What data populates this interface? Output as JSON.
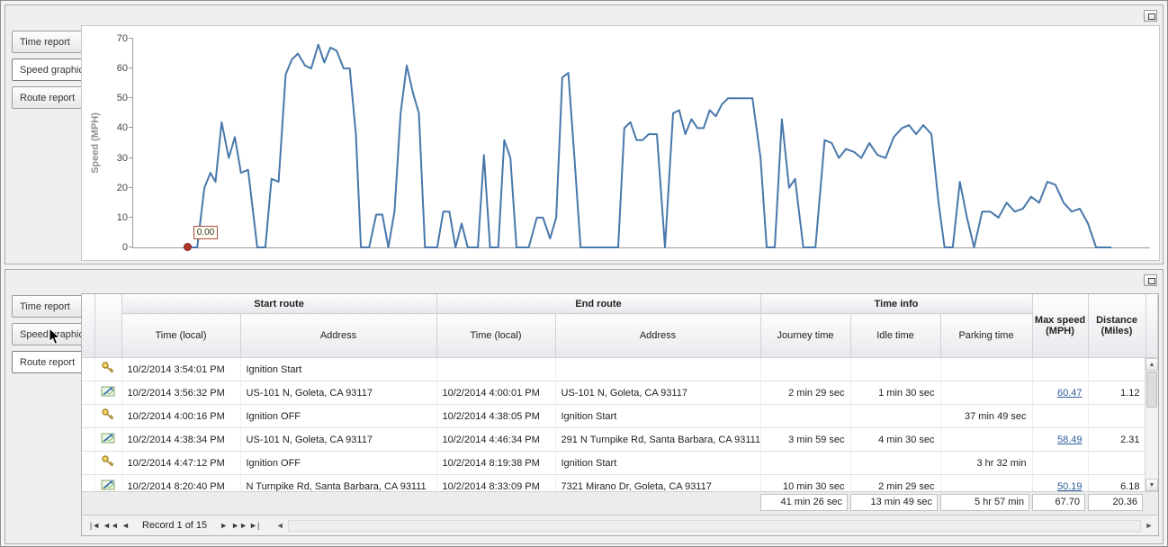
{
  "panels": {
    "top": {
      "tabs": [
        "Time report",
        "Speed graphic",
        "Route report"
      ],
      "selected_tab": "Speed graphic"
    },
    "bottom": {
      "tabs": [
        "Time report",
        "Speed graphic",
        "Route report"
      ],
      "selected_tab": "Route report"
    }
  },
  "chart_data": {
    "type": "line",
    "title": "",
    "xlabel": "",
    "ylabel": "Speed (MPH)",
    "ylim": [
      0,
      70
    ],
    "yticks": [
      0,
      10,
      20,
      30,
      40,
      50,
      60,
      70
    ],
    "grid": false,
    "legend": false,
    "line_color": "#4878ab",
    "marker": {
      "x_pct": 5.2,
      "value": 0,
      "label": "0.00",
      "color": "#b03a2e"
    },
    "points": [
      [
        5.2,
        0
      ],
      [
        6.3,
        0
      ],
      [
        7.0,
        20
      ],
      [
        7.6,
        25
      ],
      [
        8.1,
        22
      ],
      [
        8.7,
        42
      ],
      [
        9.4,
        30
      ],
      [
        10.0,
        37
      ],
      [
        10.6,
        25
      ],
      [
        11.3,
        26
      ],
      [
        12.2,
        0
      ],
      [
        13.0,
        0
      ],
      [
        13.6,
        23
      ],
      [
        14.3,
        22
      ],
      [
        15.0,
        58
      ],
      [
        15.6,
        63
      ],
      [
        16.2,
        65
      ],
      [
        16.9,
        61
      ],
      [
        17.5,
        60
      ],
      [
        18.2,
        68
      ],
      [
        18.8,
        62
      ],
      [
        19.4,
        67
      ],
      [
        20.0,
        66
      ],
      [
        20.7,
        60
      ],
      [
        21.3,
        60
      ],
      [
        21.9,
        38
      ],
      [
        22.4,
        0
      ],
      [
        23.2,
        0
      ],
      [
        23.9,
        11
      ],
      [
        24.5,
        11
      ],
      [
        25.1,
        0
      ],
      [
        25.7,
        12
      ],
      [
        26.3,
        45
      ],
      [
        26.9,
        61
      ],
      [
        27.5,
        52
      ],
      [
        28.1,
        45
      ],
      [
        28.7,
        0
      ],
      [
        29.9,
        0
      ],
      [
        30.5,
        12
      ],
      [
        31.1,
        12
      ],
      [
        31.7,
        0
      ],
      [
        32.3,
        8
      ],
      [
        32.9,
        0
      ],
      [
        33.9,
        0
      ],
      [
        34.5,
        31
      ],
      [
        35.1,
        0
      ],
      [
        35.9,
        0
      ],
      [
        36.5,
        36
      ],
      [
        37.1,
        30
      ],
      [
        37.7,
        0
      ],
      [
        38.9,
        0
      ],
      [
        39.7,
        10
      ],
      [
        40.3,
        10
      ],
      [
        41.0,
        3
      ],
      [
        41.6,
        10
      ],
      [
        42.2,
        57
      ],
      [
        42.8,
        58.5
      ],
      [
        43.4,
        30
      ],
      [
        44.0,
        0
      ],
      [
        45.5,
        0
      ],
      [
        47.7,
        0
      ],
      [
        48.3,
        40
      ],
      [
        48.9,
        42
      ],
      [
        49.5,
        36
      ],
      [
        50.1,
        36
      ],
      [
        50.7,
        38
      ],
      [
        51.5,
        38
      ],
      [
        52.3,
        0
      ],
      [
        53.1,
        45
      ],
      [
        53.7,
        46
      ],
      [
        54.3,
        38
      ],
      [
        54.9,
        43
      ],
      [
        55.5,
        40
      ],
      [
        56.1,
        40
      ],
      [
        56.7,
        46
      ],
      [
        57.3,
        44
      ],
      [
        57.9,
        48
      ],
      [
        58.5,
        50
      ],
      [
        59.3,
        50
      ],
      [
        60.1,
        50
      ],
      [
        60.9,
        50
      ],
      [
        61.7,
        30
      ],
      [
        62.3,
        0
      ],
      [
        63.1,
        0
      ],
      [
        63.8,
        43
      ],
      [
        64.5,
        20
      ],
      [
        65.1,
        23
      ],
      [
        65.9,
        0
      ],
      [
        67.1,
        0
      ],
      [
        68.0,
        36
      ],
      [
        68.7,
        35
      ],
      [
        69.4,
        30
      ],
      [
        70.1,
        33
      ],
      [
        70.9,
        32
      ],
      [
        71.6,
        30
      ],
      [
        72.4,
        35
      ],
      [
        73.2,
        31
      ],
      [
        74.0,
        30
      ],
      [
        74.8,
        37
      ],
      [
        75.6,
        40
      ],
      [
        76.3,
        41
      ],
      [
        77.0,
        38
      ],
      [
        77.7,
        41
      ],
      [
        78.5,
        38
      ],
      [
        79.2,
        15
      ],
      [
        79.8,
        0
      ],
      [
        80.6,
        0
      ],
      [
        81.3,
        22
      ],
      [
        82.0,
        10
      ],
      [
        82.7,
        0
      ],
      [
        83.5,
        12
      ],
      [
        84.3,
        12
      ],
      [
        85.1,
        10
      ],
      [
        85.9,
        15
      ],
      [
        86.7,
        12
      ],
      [
        87.5,
        13
      ],
      [
        88.3,
        17
      ],
      [
        89.1,
        15
      ],
      [
        89.9,
        22
      ],
      [
        90.7,
        21
      ],
      [
        91.5,
        15
      ],
      [
        92.3,
        12
      ],
      [
        93.1,
        13
      ],
      [
        93.9,
        8
      ],
      [
        94.7,
        0
      ],
      [
        96.2,
        0
      ]
    ]
  },
  "table": {
    "groups": [
      "Start route",
      "End route",
      "Time info"
    ],
    "columns": [
      "Time (local)",
      "Address",
      "Time (local)",
      "Address",
      "Journey time",
      "Idle time",
      "Parking time",
      "Max speed (MPH)",
      "Distance (Miles)"
    ],
    "rows": [
      {
        "icon": "key",
        "cells": [
          "10/2/2014 3:54:01 PM",
          "Ignition Start",
          "",
          "",
          "",
          "",
          "",
          "",
          ""
        ]
      },
      {
        "icon": "route",
        "cells": [
          "10/2/2014 3:56:32 PM",
          "US-101 N, Goleta, CA 93117",
          "10/2/2014 4:00:01 PM",
          "US-101 N, Goleta, CA 93117",
          "2 min 29 sec",
          "1 min 30 sec",
          "",
          "60.47",
          "1.12"
        ]
      },
      {
        "icon": "key",
        "cells": [
          "10/2/2014 4:00:16 PM",
          "Ignition OFF",
          "10/2/2014 4:38:05 PM",
          "Ignition Start",
          "",
          "",
          "37 min 49 sec",
          "",
          ""
        ]
      },
      {
        "icon": "route",
        "cells": [
          "10/2/2014 4:38:34 PM",
          "US-101 N, Goleta, CA 93117",
          "10/2/2014 4:46:34 PM",
          "291 N Turnpike Rd, Santa Barbara, CA 93111",
          "3 min 59 sec",
          "4 min 30 sec",
          "",
          "58.49",
          "2.31"
        ]
      },
      {
        "icon": "key",
        "cells": [
          "10/2/2014 4:47:12 PM",
          "Ignition OFF",
          "10/2/2014 8:19:38 PM",
          "Ignition Start",
          "",
          "",
          "3 hr 32 min",
          "",
          ""
        ]
      },
      {
        "icon": "route",
        "cells": [
          "10/2/2014 8:20:40 PM",
          "N Turnpike Rd, Santa Barbara, CA 93111",
          "10/2/2014 8:33:09 PM",
          "7321 Mirano Dr, Goleta, CA 93117",
          "10 min 30 sec",
          "2 min 29 sec",
          "",
          "50.19",
          "6.18"
        ]
      }
    ],
    "summary": {
      "journey_time": "41 min 26 sec",
      "idle_time": "13 min 49 sec",
      "parking_time": "5 hr 57 min",
      "max_speed": "67.70",
      "distance": "20.36"
    }
  },
  "navigator": {
    "record_label": "Record 1 of 15",
    "buttons": [
      "|◄",
      "◄◄",
      "◄",
      "►",
      "►►",
      "►|"
    ]
  },
  "icons": {
    "scroll_up": "▲",
    "scroll_down": "▼",
    "scroll_left": "◄",
    "scroll_right": "►"
  }
}
